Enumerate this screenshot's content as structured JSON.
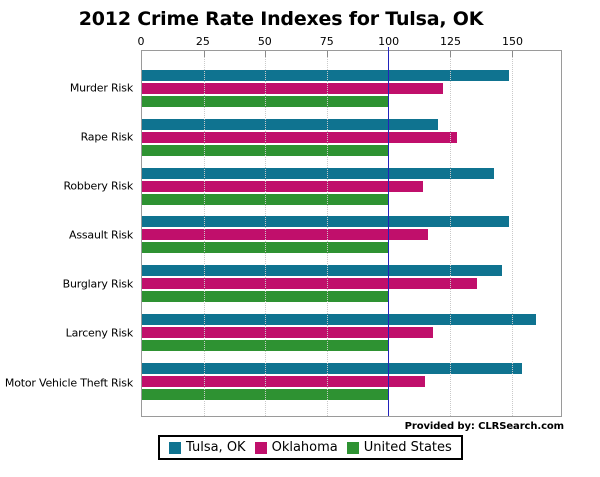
{
  "title": "2012 Crime Rate Indexes for Tulsa, OK",
  "provided_by": "Provided by: CLRSearch.com",
  "colors": {
    "tulsa_ok": "#0F7390",
    "oklahoma": "#C00F6B",
    "united_states": "#2E9232",
    "reference_line": "#2222BB",
    "gridline": "#C9C9C9",
    "plot_border": "#9A9A9A",
    "legend_border": "#000000"
  },
  "chart_data": {
    "type": "bar",
    "orientation": "horizontal",
    "title": "2012 Crime Rate Indexes for Tulsa, OK",
    "categories": [
      "Murder Risk",
      "Rape Risk",
      "Robbery Risk",
      "Assault Risk",
      "Burglary Risk",
      "Larceny Risk",
      "Motor Vehicle Theft Risk"
    ],
    "series": [
      {
        "name": "Tulsa, OK",
        "color": "#0F7390",
        "values": [
          149,
          120,
          143,
          149,
          146,
          160,
          154
        ]
      },
      {
        "name": "Oklahoma",
        "color": "#C00F6B",
        "values": [
          122,
          128,
          114,
          116,
          136,
          118,
          115
        ]
      },
      {
        "name": "United States",
        "color": "#2E9232",
        "values": [
          100,
          100,
          100,
          100,
          100,
          100,
          100
        ]
      }
    ],
    "x_ticks": [
      0,
      25,
      50,
      75,
      100,
      125,
      150
    ],
    "xlim": [
      0,
      170
    ],
    "reference_line_x": 100,
    "grid": "dotted-vertical",
    "axis_position": "top",
    "legend_position": "bottom-center"
  }
}
